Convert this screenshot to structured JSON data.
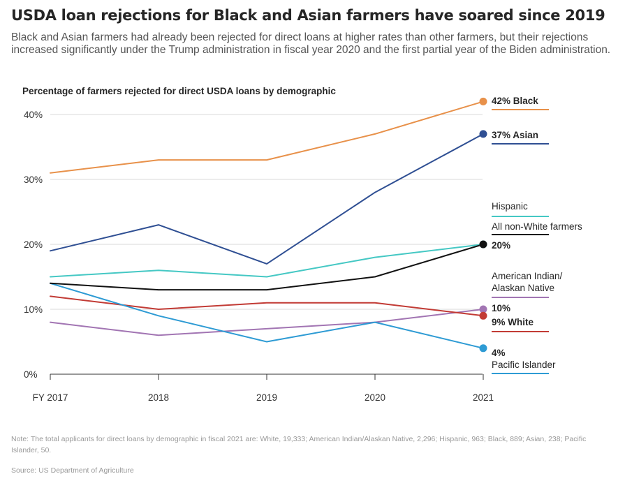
{
  "header": {
    "title": "USDA loan rejections for Black and Asian farmers have soared since 2019",
    "subtitle": "Black and Asian farmers had already been rejected for direct loans at higher rates than other farmers, but their rejections increased significantly under the Trump administration in fiscal year 2020 and the first partial year of the Biden administration."
  },
  "chart_data": {
    "type": "line",
    "title": "Percentage of farmers rejected for direct USDA loans by demographic",
    "categories": [
      "FY 2017",
      "2018",
      "2019",
      "2020",
      "2021"
    ],
    "ylim": [
      0,
      40
    ],
    "yticks": [
      0,
      10,
      20,
      30,
      40
    ],
    "ytick_labels": [
      "0%",
      "10%",
      "20%",
      "30%",
      "40%"
    ],
    "grid": true,
    "series": [
      {
        "key": "black",
        "name": "Black",
        "color": "#e8914a",
        "values": [
          31,
          33,
          33,
          37,
          42
        ],
        "end_label": "42%",
        "label_bold": true
      },
      {
        "key": "asian",
        "name": "Asian",
        "color": "#2f4f93",
        "values": [
          19,
          23,
          17,
          28,
          37
        ],
        "end_label": "37%",
        "label_bold": true
      },
      {
        "key": "hispanic",
        "name": "Hispanic",
        "color": "#45c8c4",
        "values": [
          15,
          16,
          15,
          18,
          20
        ],
        "end_label": "",
        "label_bold": false
      },
      {
        "key": "nonwhite",
        "name": "All non-White farmers",
        "color": "#111111",
        "values": [
          14,
          13,
          13,
          15,
          20
        ],
        "end_label": "20%",
        "label_bold": false
      },
      {
        "key": "amind",
        "name": "American Indian/ Alaskan Native",
        "color": "#a275b3",
        "values": [
          8,
          6,
          7,
          8,
          10
        ],
        "end_label": "10%",
        "label_bold": false
      },
      {
        "key": "white",
        "name": "White",
        "color": "#c23b35",
        "values": [
          12,
          10,
          11,
          11,
          9
        ],
        "end_label": "9%",
        "label_bold": true
      },
      {
        "key": "pacific",
        "name": "Pacific Islander",
        "color": "#2e9bd4",
        "values": [
          14,
          9,
          5,
          8,
          4
        ],
        "end_label": "4%",
        "label_bold": false
      }
    ],
    "legend_labels": {
      "black": "42% Black",
      "asian": "37% Asian",
      "hispanic": "Hispanic",
      "nonwhite": "All non-White farmers",
      "nonwhite_value": "20%",
      "amind_line1": "American Indian/",
      "amind_line2": "Alaskan Native",
      "amind_value": "10%",
      "white": "9% White",
      "pacific_value": "4%",
      "pacific": "Pacific Islander"
    }
  },
  "footer": {
    "note": "Note: The total applicants for direct loans by demographic in fiscal 2021 are: White, 19,333; American Indian/Alaskan Native, 2,296; Hispanic, 963; Black, 889; Asian, 238; Pacific Islander, 50.",
    "source": "Source: US Department of Agriculture"
  }
}
